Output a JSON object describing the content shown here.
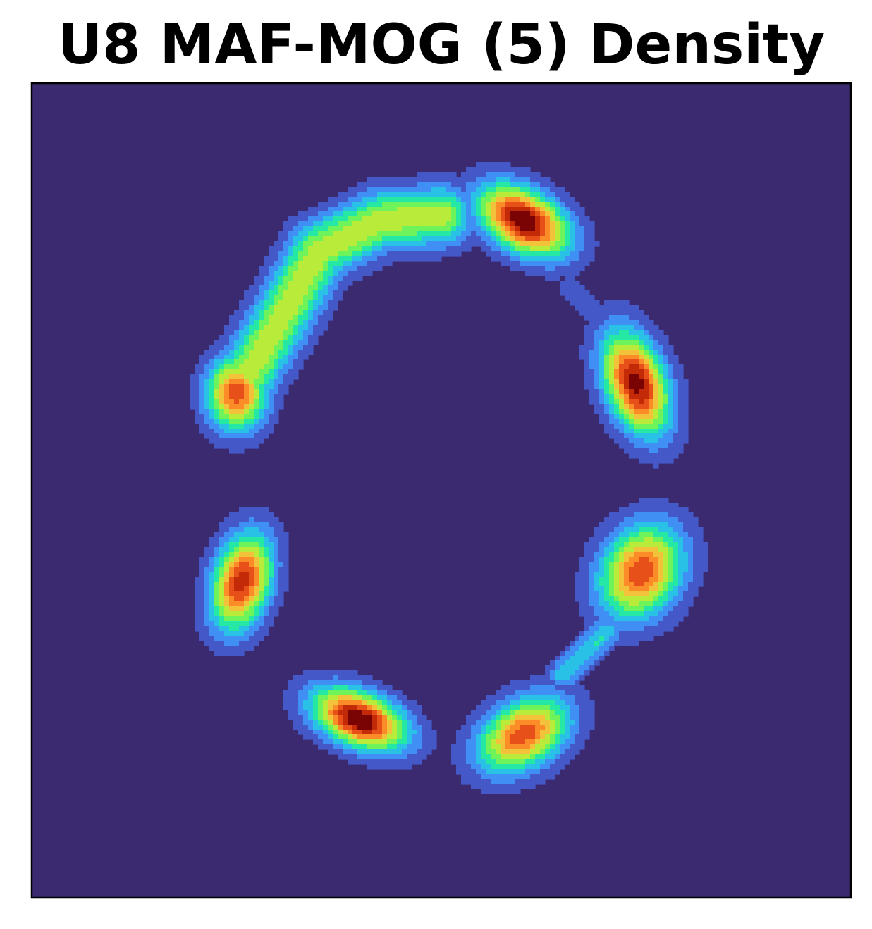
{
  "chart_data": {
    "type": "heatmap",
    "title": "U8 MAF-MOG (5) Density",
    "xlabel": "",
    "ylabel": "",
    "axis_ticks": "none",
    "grid": false,
    "colormap": "turbo",
    "xlim": [
      -4,
      4
    ],
    "ylim": [
      -4,
      4
    ],
    "background_color": "#3b2a70",
    "level_colors": [
      "#3b2a70",
      "#4458c8",
      "#3f8ff5",
      "#29c1e6",
      "#26e8a5",
      "#6ff35a",
      "#b9ec3a",
      "#f2c33a",
      "#fc8c27",
      "#e8501a",
      "#c32a08",
      "#7a0403"
    ],
    "modes": [
      {
        "name": "top-right",
        "x": 0.8,
        "y": 2.65,
        "peak": 1.0,
        "sx": 0.33,
        "sy": 0.2,
        "angle": -30
      },
      {
        "name": "right-upper",
        "x": 1.9,
        "y": 1.05,
        "peak": 0.95,
        "sx": 0.2,
        "sy": 0.36,
        "angle": 20
      },
      {
        "name": "right-lower",
        "x": 1.95,
        "y": -0.8,
        "peak": 0.82,
        "sx": 0.26,
        "sy": 0.33,
        "angle": -30
      },
      {
        "name": "bottom-right",
        "x": 0.8,
        "y": -2.4,
        "peak": 0.8,
        "sx": 0.33,
        "sy": 0.22,
        "angle": 32
      },
      {
        "name": "bottom-left",
        "x": -0.8,
        "y": -2.25,
        "peak": 1.0,
        "sx": 0.33,
        "sy": 0.18,
        "angle": -22
      },
      {
        "name": "left-lower",
        "x": -1.95,
        "y": -0.9,
        "peak": 0.88,
        "sx": 0.19,
        "sy": 0.33,
        "angle": -15
      },
      {
        "name": "left-upper",
        "x": -2.0,
        "y": 0.95,
        "peak": 0.8,
        "sx": 0.2,
        "sy": 0.25,
        "angle": 0
      }
    ],
    "ridges": [
      {
        "name": "upper-left arc",
        "points": [
          [
            -2.0,
            0.95
          ],
          [
            -1.5,
            1.8
          ],
          [
            -1.2,
            2.35
          ],
          [
            -0.6,
            2.65
          ],
          [
            0.0,
            2.7
          ]
        ],
        "peak": 0.55,
        "width": 0.2
      },
      {
        "name": "upper-right bridge",
        "points": [
          [
            1.25,
            2.0
          ],
          [
            1.65,
            1.6
          ]
        ],
        "peak": 0.14,
        "width": 0.08
      },
      {
        "name": "lower-right bridge",
        "points": [
          [
            1.6,
            -1.4
          ],
          [
            1.2,
            -1.8
          ]
        ],
        "peak": 0.32,
        "width": 0.1
      }
    ]
  }
}
